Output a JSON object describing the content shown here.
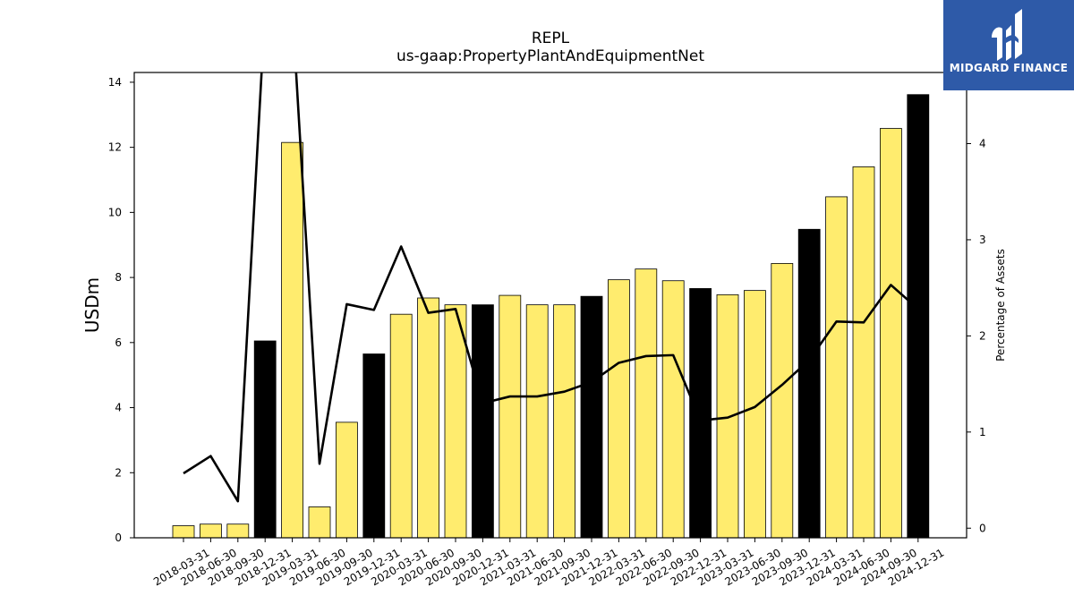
{
  "chart_data": {
    "type": "bar",
    "title": "REPL",
    "subtitle": "us-gaap:PropertyPlantAndEquipmentNet",
    "ylabel": "USDm",
    "y2label": "Percentage of Assets",
    "ylim": [
      0,
      14.3
    ],
    "y2lim": [
      -0.1,
      4.74
    ],
    "yticks": [
      0,
      2,
      4,
      6,
      8,
      10,
      12,
      14
    ],
    "y2ticks": [
      0,
      1,
      2,
      3,
      4
    ],
    "categories": [
      "2018-03-31",
      "2018-06-30",
      "2018-09-30",
      "2018-12-31",
      "2019-03-31",
      "2019-06-30",
      "2019-09-30",
      "2019-12-31",
      "2020-03-31",
      "2020-06-30",
      "2020-09-30",
      "2020-12-31",
      "2021-03-31",
      "2021-06-30",
      "2021-09-30",
      "2021-12-31",
      "2022-03-31",
      "2022-06-30",
      "2022-09-30",
      "2022-12-31",
      "2023-03-31",
      "2023-06-30",
      "2023-09-30",
      "2023-12-31",
      "2024-03-31",
      "2024-06-30",
      "2024-09-30",
      "2024-12-31"
    ],
    "series": [
      {
        "type": "bar",
        "values": [
          0.37,
          0.42,
          0.42,
          6.05,
          12.15,
          0.95,
          3.55,
          5.65,
          6.87,
          7.37,
          7.16,
          7.16,
          7.45,
          7.16,
          7.16,
          7.42,
          7.93,
          8.26,
          7.9,
          7.66,
          7.47,
          7.6,
          8.43,
          9.48,
          10.48,
          11.4,
          12.58,
          13.62
        ],
        "highlight": [
          false,
          false,
          false,
          true,
          false,
          false,
          false,
          true,
          false,
          false,
          false,
          true,
          false,
          false,
          false,
          true,
          false,
          false,
          false,
          true,
          false,
          false,
          false,
          true,
          false,
          false,
          false,
          true
        ]
      },
      {
        "type": "line",
        "axis": "right",
        "values": [
          0.57,
          0.75,
          0.28,
          5.4,
          5.4,
          0.67,
          2.33,
          2.27,
          2.93,
          2.24,
          2.28,
          1.3,
          1.37,
          1.37,
          1.42,
          1.52,
          1.72,
          1.79,
          1.8,
          1.12,
          1.15,
          1.26,
          1.49,
          1.75,
          2.15,
          2.14,
          2.53,
          2.28
        ]
      }
    ],
    "colors": {
      "bar": "#ffec6e",
      "highlight": "#000000",
      "line": "#000000"
    }
  },
  "logo": {
    "text": "MIDGARD FINANCE",
    "bg": "#2e5aa8"
  }
}
